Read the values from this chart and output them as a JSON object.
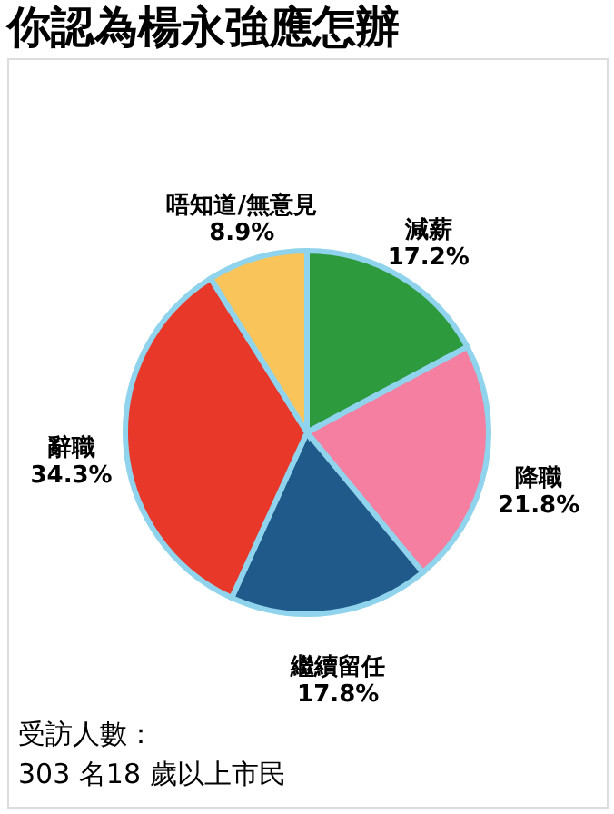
{
  "chart_data": {
    "type": "pie",
    "title": "你認為楊永強應怎辦",
    "categories": [
      "減薪",
      "降職",
      "繼續留任",
      "辭職",
      "唔知道/無意見"
    ],
    "values": [
      17.2,
      21.8,
      17.8,
      34.3,
      8.9
    ],
    "value_labels": [
      "17.2%",
      "21.8%",
      "17.8%",
      "34.3%",
      "8.9%"
    ],
    "colors": [
      "#2e9a3e",
      "#f47fa0",
      "#1f5a8a",
      "#e8382a",
      "#f9c55a"
    ],
    "annotations": [
      "受訪人數：",
      "303 名18 歲以上市民"
    ],
    "legend": false
  }
}
